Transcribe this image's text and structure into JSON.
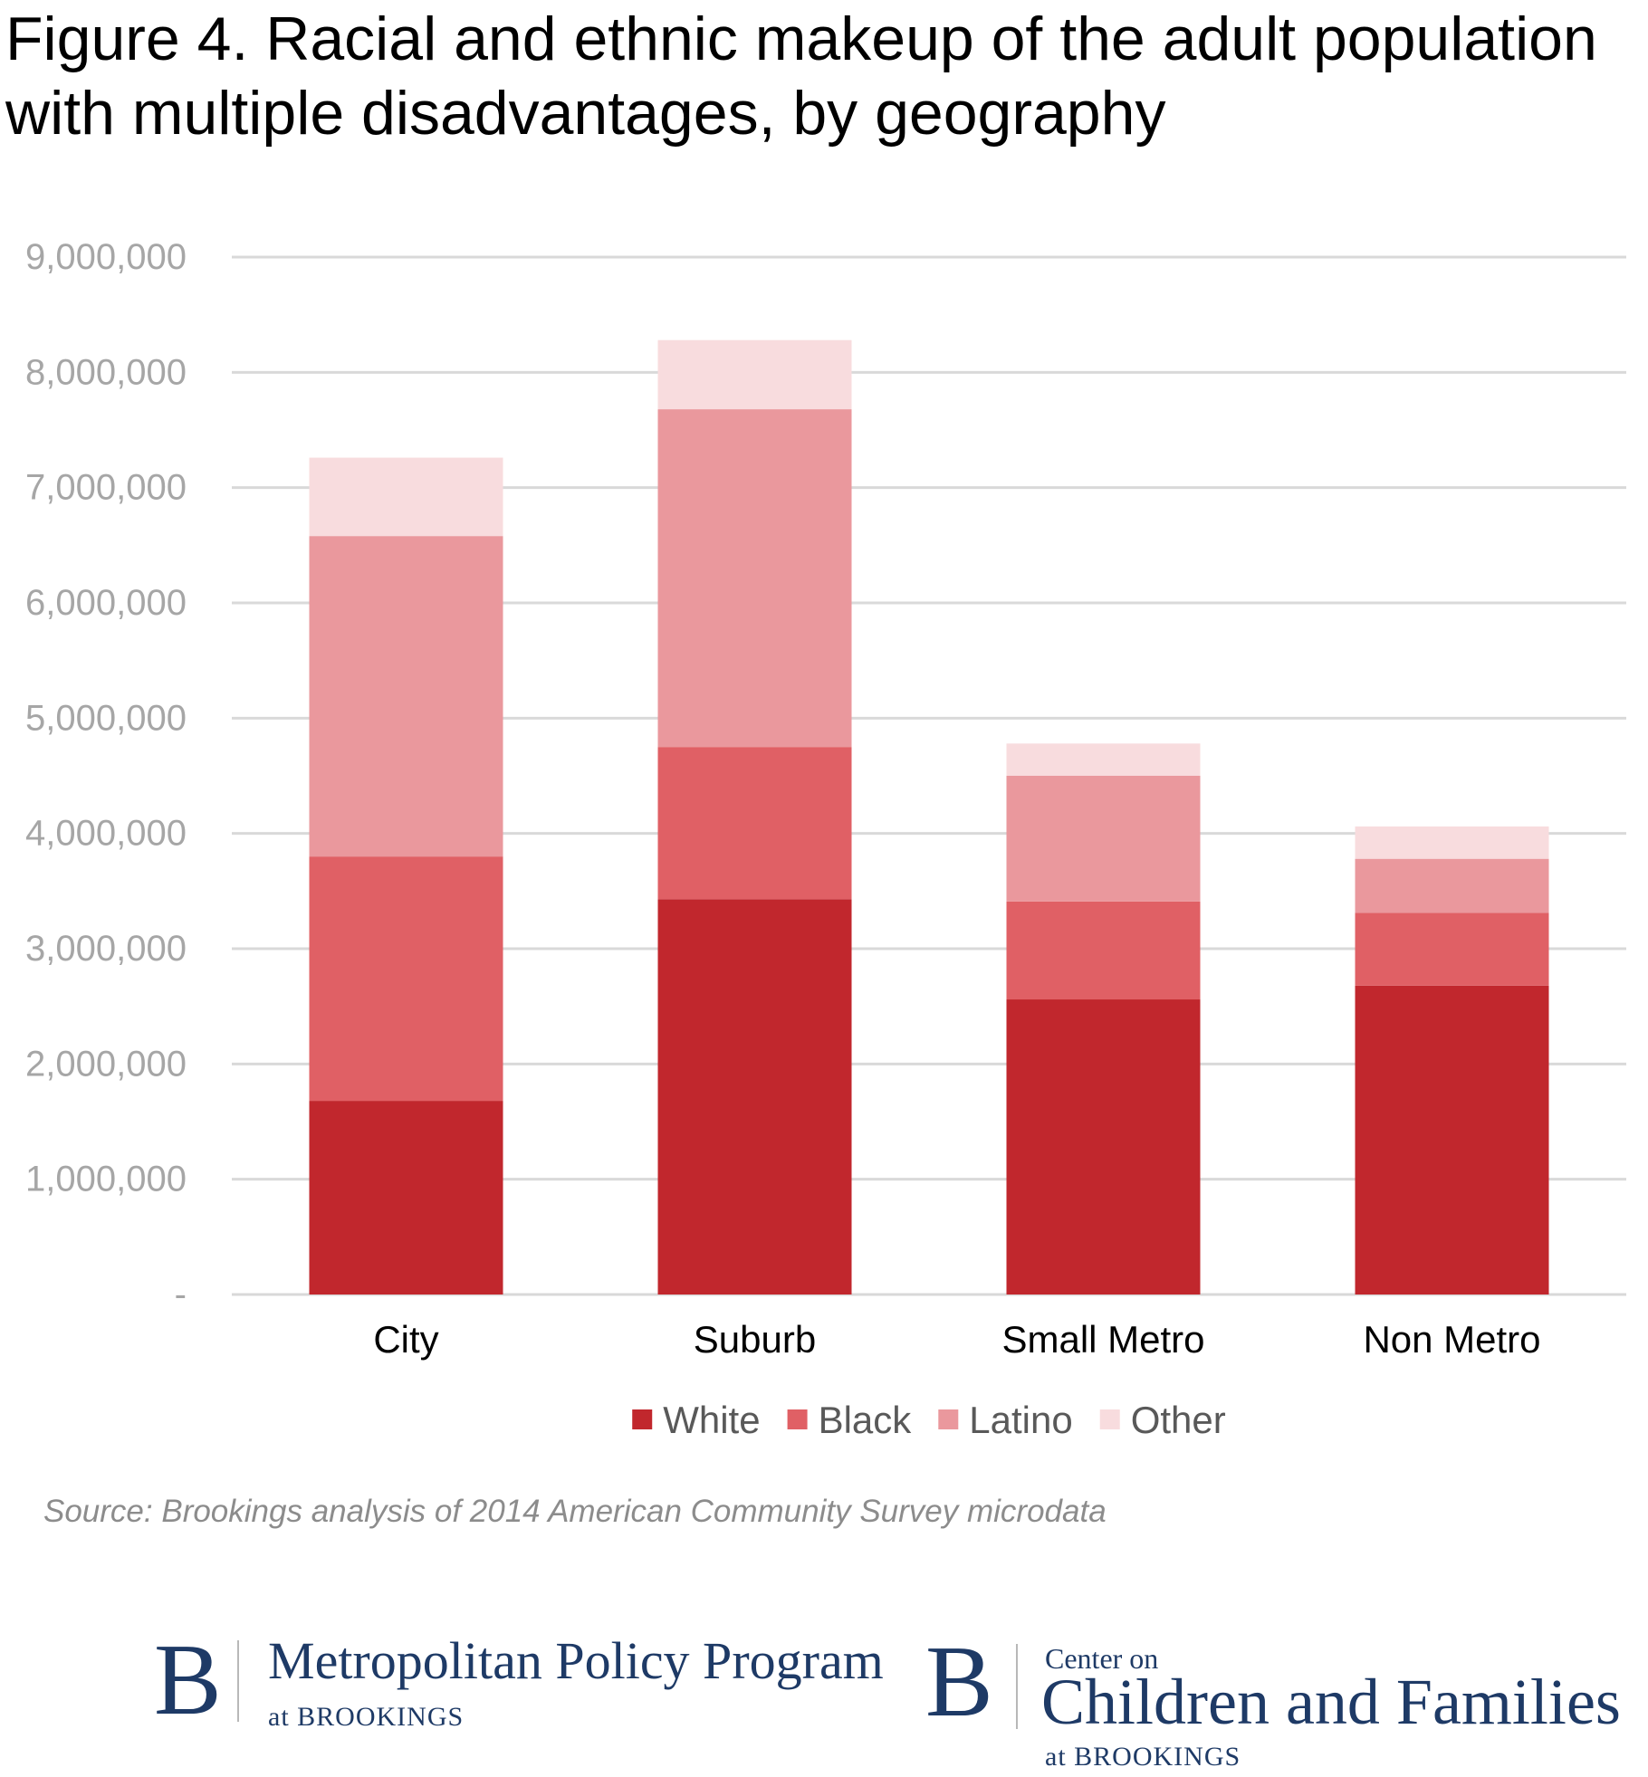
{
  "chart_data": {
    "type": "bar",
    "stacked": true,
    "title": "Figure 4. Racial and ethnic makeup of the adult population with multiple disadvantages, by geography",
    "categories": [
      "City",
      "Suburb",
      "Small Metro",
      "Non Metro"
    ],
    "series": [
      {
        "name": "White",
        "color": "#c1272d",
        "values": [
          1680000,
          3430000,
          2560000,
          2680000
        ]
      },
      {
        "name": "Black",
        "color": "#e06065",
        "values": [
          2120000,
          1320000,
          850000,
          630000
        ]
      },
      {
        "name": "Latino",
        "color": "#ea989d",
        "values": [
          2780000,
          2930000,
          1090000,
          470000
        ]
      },
      {
        "name": "Other",
        "color": "#f8dcde",
        "values": [
          680000,
          600000,
          280000,
          280000
        ]
      }
    ],
    "ylim": [
      0,
      9000000
    ],
    "yticks": [
      0,
      1000000,
      2000000,
      3000000,
      4000000,
      5000000,
      6000000,
      7000000,
      8000000,
      9000000
    ],
    "ytick_labels": [
      "-",
      "1,000,000",
      "2,000,000",
      "3,000,000",
      "4,000,000",
      "5,000,000",
      "6,000,000",
      "7,000,000",
      "8,000,000",
      "9,000,000"
    ],
    "xlabel": "",
    "ylabel": "",
    "grid": true,
    "legend_position": "bottom-center"
  },
  "source": "Source: Brookings analysis of 2014 American Community Survey microdata",
  "logos": {
    "metro": {
      "mark": "B",
      "name": "Metropolitan Policy Program",
      "sub": "at BROOKINGS"
    },
    "ccf": {
      "mark": "B",
      "line1": "Center on",
      "name": "Children and Families",
      "sub": "at BROOKINGS"
    }
  },
  "colors": {
    "grid": "#d9d9d9",
    "axis_text": "#a6a6a6",
    "category_text": "#000000",
    "logo_navy": "#1e3a66"
  }
}
